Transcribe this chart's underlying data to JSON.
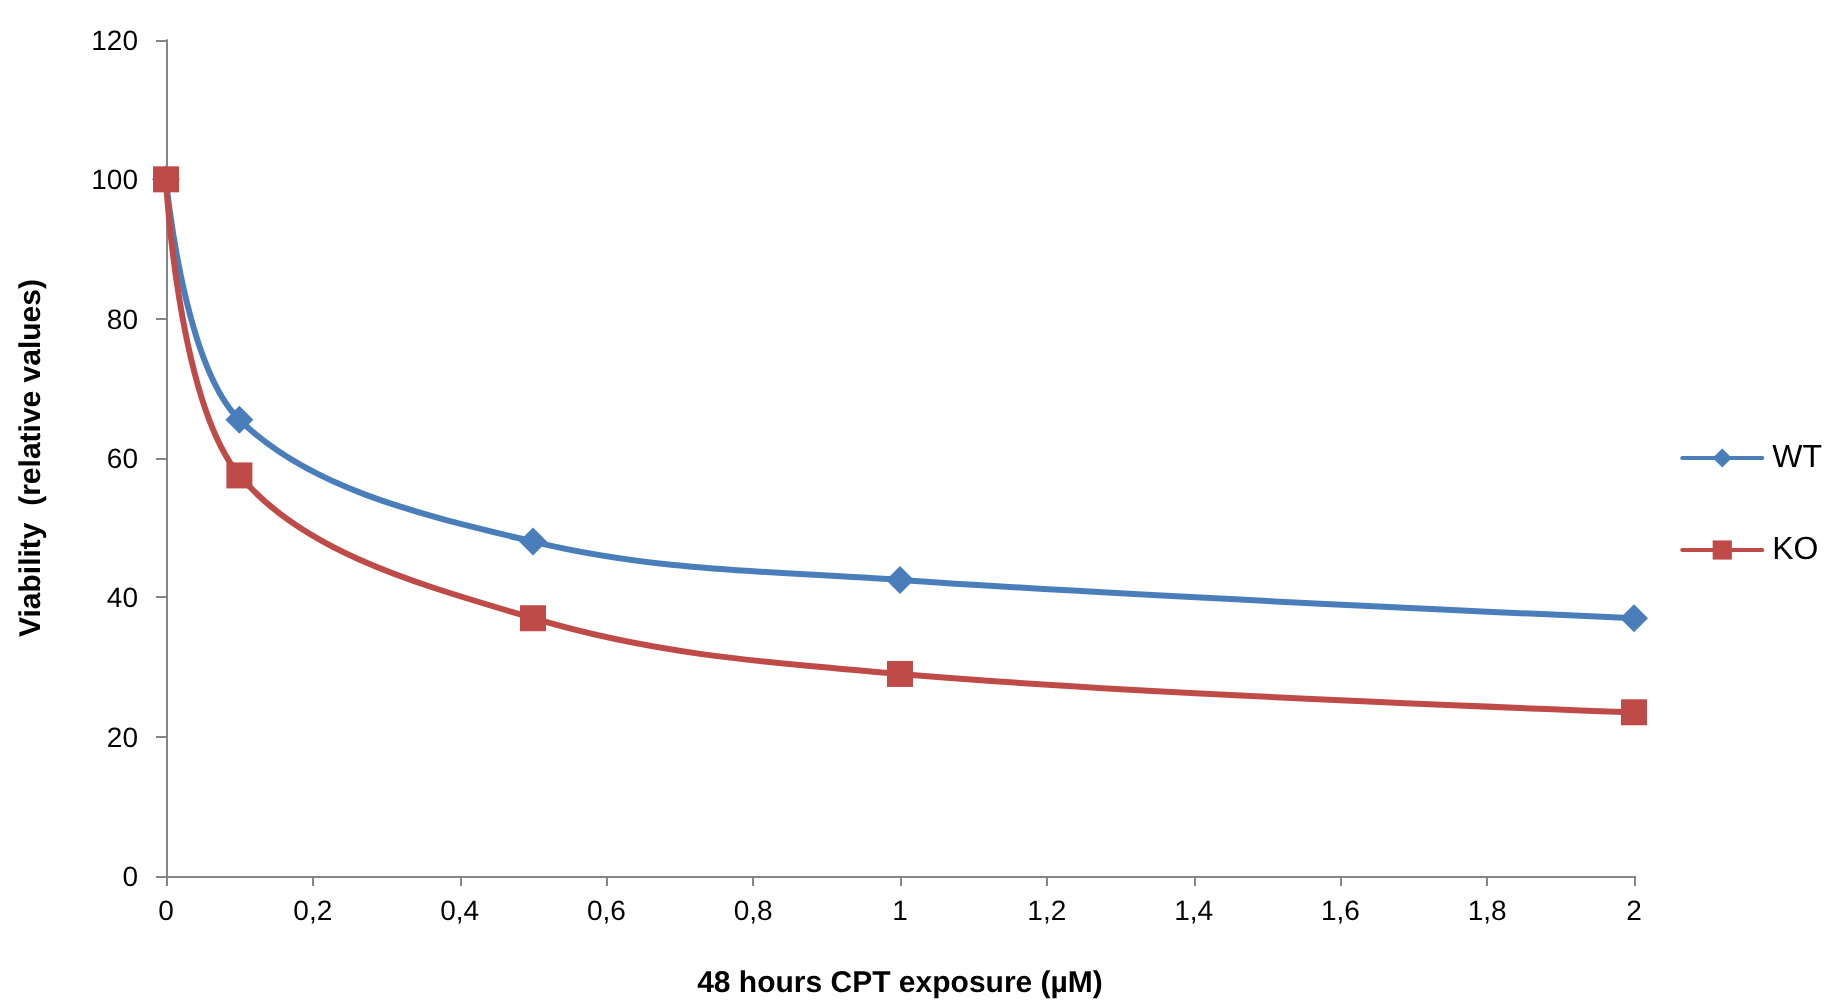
{
  "chart_data": {
    "type": "line",
    "xlabel": "48 hours CPT exposure (µM)",
    "ylabel": "Viability  (relative values)",
    "x": [
      0,
      0.1,
      0.5,
      1,
      2
    ],
    "series": [
      {
        "name": "WT",
        "color": "#4a7ebb",
        "marker": "diamond",
        "values": [
          100,
          65.5,
          48,
          42.5,
          37
        ]
      },
      {
        "name": "KO",
        "color": "#be4b48",
        "marker": "square",
        "values": [
          100,
          57.5,
          37,
          29,
          23.5
        ]
      }
    ],
    "xlim": [
      0,
      2
    ],
    "xticks": [
      0,
      {
        "value": 0.2,
        "label": "0,2"
      },
      {
        "value": 0.4,
        "label": "0,4"
      },
      {
        "value": 0.6,
        "label": "0,6"
      },
      {
        "value": 0.8,
        "label": "0,8"
      },
      1,
      {
        "value": 1.2,
        "label": "1,2"
      },
      {
        "value": 1.4,
        "label": "1,4"
      },
      {
        "value": 1.6,
        "label": "1,6"
      },
      {
        "value": 1.8,
        "label": "1,8"
      },
      2
    ],
    "ylim": [
      0,
      120
    ],
    "yticks": [
      0,
      20,
      40,
      60,
      80,
      100,
      120
    ],
    "grid": false,
    "legend": "right",
    "line_style": "solid"
  }
}
